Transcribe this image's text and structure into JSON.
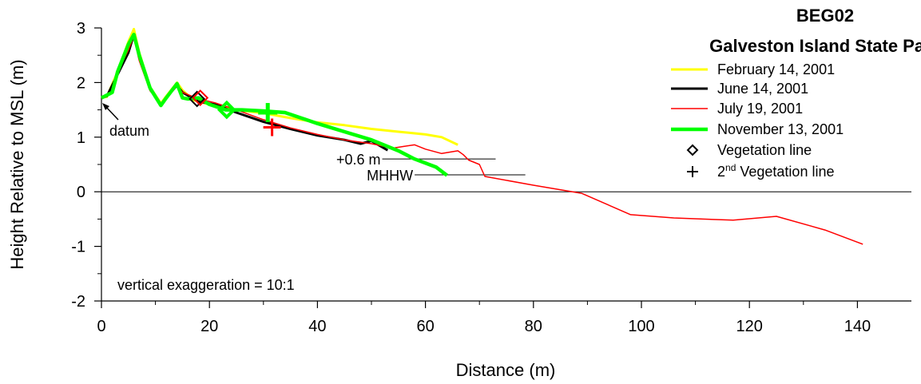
{
  "chart_data": {
    "type": "line",
    "title": "BEG02",
    "subtitle": "Galveston Island State Park",
    "xlabel": "Distance (m)",
    "ylabel": "Height Relative to MSL (m)",
    "xlim": [
      0,
      150
    ],
    "ylim": [
      -2,
      3
    ],
    "xticks": [
      0,
      20,
      40,
      60,
      80,
      100,
      120,
      140
    ],
    "yticks": [
      -2,
      -1,
      0,
      1,
      2,
      3
    ],
    "xtick_labels": [
      "0",
      "20",
      "40",
      "60",
      "80",
      "100",
      "120",
      "140"
    ],
    "ytick_labels": [
      "-2",
      "-1",
      "0",
      "1",
      "2",
      "3"
    ],
    "grid": false,
    "legend_position": "top-right",
    "series": [
      {
        "name": "February 14, 2001",
        "color": "#ffff00",
        "x": [
          0,
          1,
          3,
          5,
          6,
          7,
          9,
          11,
          12,
          14,
          15,
          17,
          20,
          25,
          30,
          35,
          40,
          45,
          50,
          55,
          60,
          63,
          66
        ],
        "y": [
          1.72,
          1.74,
          2.2,
          2.75,
          2.98,
          2.55,
          1.92,
          1.62,
          1.75,
          2.0,
          1.86,
          1.68,
          1.6,
          1.5,
          1.44,
          1.35,
          1.27,
          1.22,
          1.15,
          1.1,
          1.05,
          1.0,
          0.86
        ]
      },
      {
        "name": "June 14, 2001",
        "color": "#000000",
        "x": [
          0,
          1,
          3,
          5,
          6,
          7,
          9,
          11,
          12,
          14,
          15,
          18,
          21,
          25,
          30,
          35,
          40,
          45,
          48,
          50,
          53
        ],
        "y": [
          1.72,
          1.75,
          2.15,
          2.55,
          2.88,
          2.45,
          1.9,
          1.6,
          1.72,
          1.95,
          1.82,
          1.65,
          1.6,
          1.45,
          1.28,
          1.15,
          1.03,
          0.95,
          0.88,
          0.93,
          0.76
        ]
      },
      {
        "name": "July 19, 2001",
        "color": "#ff0000",
        "x": [
          0,
          2,
          3,
          5,
          6,
          7,
          9,
          11,
          12,
          14,
          15,
          18,
          21,
          25,
          30,
          35,
          40,
          45,
          50,
          54,
          56,
          58,
          60,
          63,
          66,
          67,
          68,
          70,
          71,
          80,
          89,
          98,
          106,
          117,
          125,
          134,
          141
        ],
        "y": [
          1.72,
          1.8,
          2.2,
          2.6,
          2.85,
          2.4,
          1.85,
          1.6,
          1.72,
          1.95,
          1.82,
          1.7,
          1.63,
          1.5,
          1.32,
          1.17,
          1.05,
          0.95,
          0.88,
          0.8,
          0.83,
          0.86,
          0.78,
          0.7,
          0.75,
          0.68,
          0.58,
          0.5,
          0.28,
          0.12,
          -0.03,
          -0.42,
          -0.48,
          -0.52,
          -0.45,
          -0.7,
          -0.96
        ]
      },
      {
        "name": "November 13, 2001",
        "color": "#00ff00",
        "x": [
          0,
          2,
          3,
          5,
          6,
          7,
          9,
          11,
          12,
          14,
          15,
          16,
          18,
          20,
          23,
          26,
          30,
          34,
          40,
          45,
          50,
          55,
          58,
          62,
          64
        ],
        "y": [
          1.72,
          1.82,
          2.2,
          2.7,
          2.88,
          2.5,
          1.9,
          1.58,
          1.72,
          1.98,
          1.72,
          1.7,
          1.72,
          1.6,
          1.5,
          1.5,
          1.48,
          1.45,
          1.25,
          1.1,
          0.95,
          0.75,
          0.6,
          0.45,
          0.3
        ]
      }
    ],
    "vegetation_line": {
      "label": "Vegetation line",
      "points": [
        {
          "x": 17.7,
          "y": 1.7,
          "color": "#000000"
        },
        {
          "x": 18.3,
          "y": 1.72,
          "color": "#ff0000"
        },
        {
          "x": 23.2,
          "y": 1.5,
          "color": "#00ff00"
        }
      ]
    },
    "second_vegetation_line": {
      "label_main": "2",
      "label_sup": "nd",
      "label_rest": " Vegetation line",
      "points": [
        {
          "x": 30.8,
          "y": 1.45,
          "color": "#00ff00"
        },
        {
          "x": 31.6,
          "y": 1.18,
          "color": "#ff0000"
        }
      ]
    },
    "reference_lines": [
      {
        "label": "+0.6 m",
        "y": 0.6,
        "x_start": 52,
        "x_end": 73
      },
      {
        "label": "MHHW",
        "y": 0.31,
        "x_start": 58,
        "x_end": 78.5
      }
    ],
    "datum_label": "datum",
    "exaggeration_note": "vertical exaggeration = 10:1"
  }
}
